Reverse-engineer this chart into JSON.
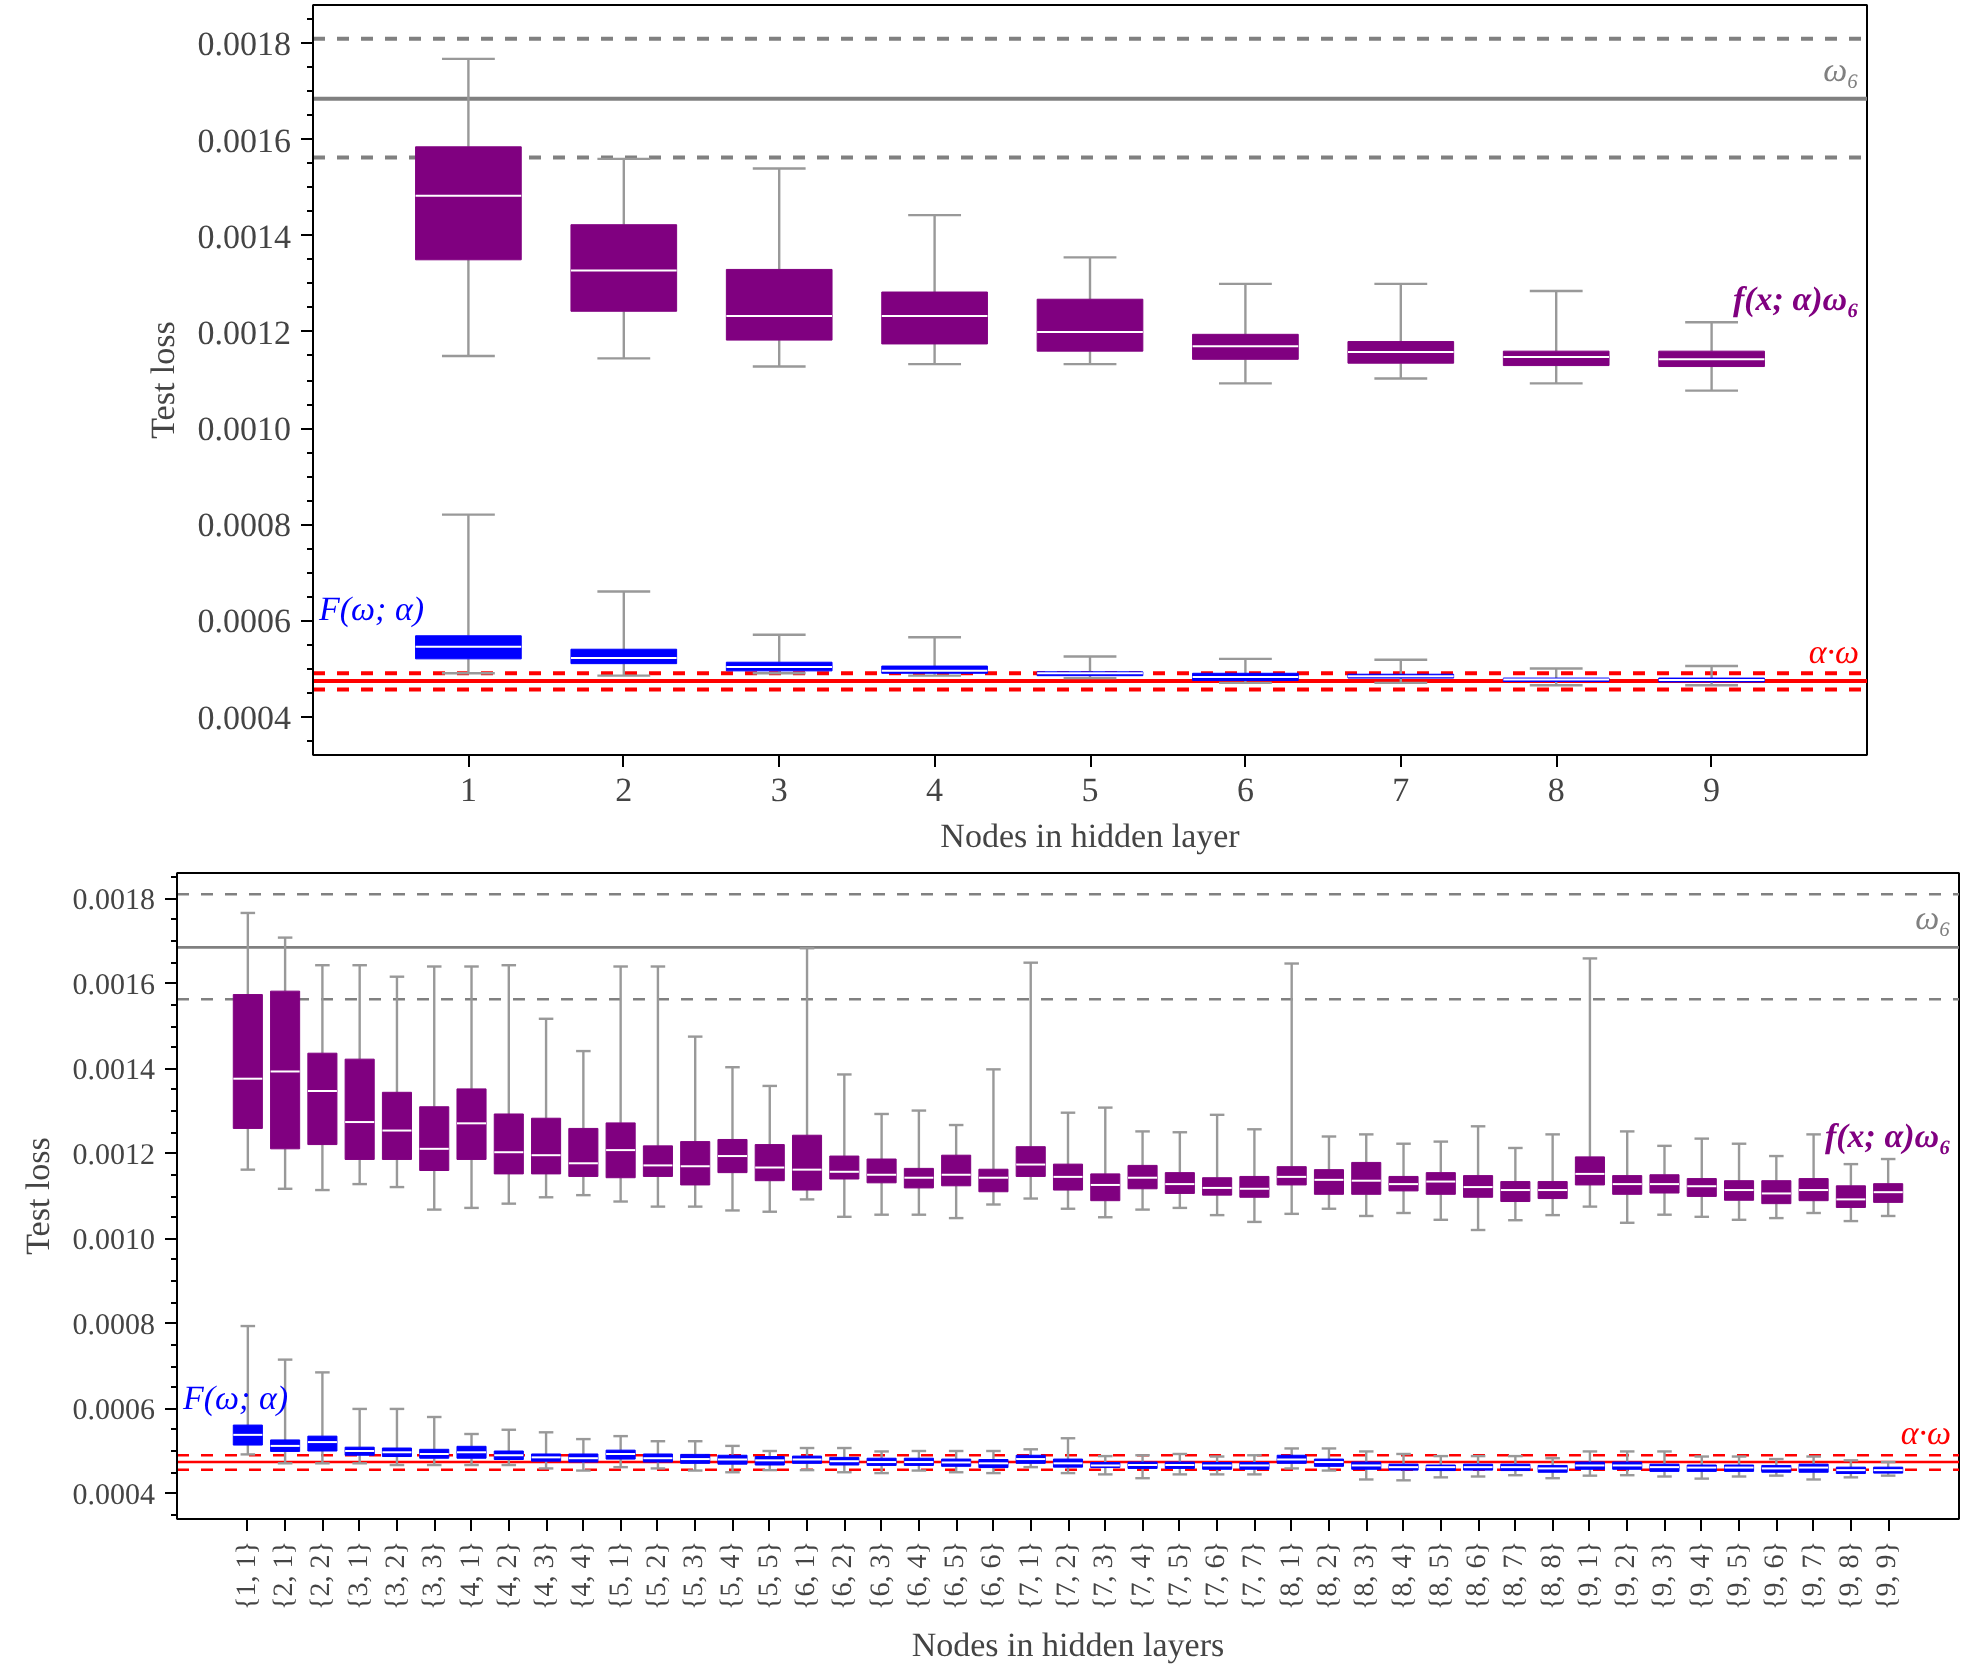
{
  "chart_data": [
    {
      "type": "box",
      "xlabel": "Nodes in hidden layer",
      "ylabel": "Test loss",
      "categories": [
        "1",
        "2",
        "3",
        "4",
        "5",
        "6",
        "7",
        "8",
        "9"
      ],
      "ylim": [
        0.00032,
        0.00188
      ],
      "yticks": [
        0.0004,
        0.0006,
        0.0008,
        {
          "value": 0.001,
          "label": "0.0010"
        },
        0.0012,
        0.0014,
        0.0016,
        0.0018
      ],
      "grid": false,
      "ref_lines": [
        {
          "axis": "y",
          "value": 0.00181,
          "color": "#808080",
          "line_style": "dashed"
        },
        {
          "axis": "y",
          "value": 0.001685,
          "color": "#808080",
          "line_style": "solid",
          "label": "ω₆"
        },
        {
          "axis": "y",
          "value": 0.001563,
          "color": "#808080",
          "line_style": "dashed"
        },
        {
          "axis": "y",
          "value": 0.00049,
          "color": "#ff0000",
          "line_style": "dashed"
        },
        {
          "axis": "y",
          "value": 0.000474,
          "color": "#ff0000",
          "line_style": "solid",
          "label": "α·ω"
        },
        {
          "axis": "y",
          "value": 0.000456,
          "color": "#ff0000",
          "line_style": "dashed"
        }
      ],
      "series": [
        {
          "name": "f(x; α)ω₆",
          "color": "#800080",
          "boxes": [
            {
              "low": 0.00115,
              "q1": 0.00135,
              "median": 0.001483,
              "q3": 0.001585,
              "high": 0.001768
            },
            {
              "low": 0.001145,
              "q1": 0.001243,
              "median": 0.001328,
              "q3": 0.001423,
              "high": 0.00156
            },
            {
              "low": 0.001128,
              "q1": 0.001183,
              "median": 0.001233,
              "q3": 0.00133,
              "high": 0.00154
            },
            {
              "low": 0.001133,
              "q1": 0.001175,
              "median": 0.001233,
              "q3": 0.001283,
              "high": 0.001443
            },
            {
              "low": 0.001133,
              "q1": 0.00116,
              "median": 0.0012,
              "q3": 0.001268,
              "high": 0.001355
            },
            {
              "low": 0.001093,
              "q1": 0.001143,
              "median": 0.00117,
              "q3": 0.001195,
              "high": 0.0013
            },
            {
              "low": 0.001103,
              "q1": 0.001135,
              "median": 0.001158,
              "q3": 0.00118,
              "high": 0.0013
            },
            {
              "low": 0.001093,
              "q1": 0.00113,
              "median": 0.001148,
              "q3": 0.00116,
              "high": 0.001285
            },
            {
              "low": 0.001078,
              "q1": 0.001128,
              "median": 0.001143,
              "q3": 0.00116,
              "high": 0.00122
            }
          ]
        },
        {
          "name": "F(ω; α)",
          "color": "#0000ff",
          "boxes": [
            {
              "low": 0.00049,
              "q1": 0.00052,
              "median": 0.000545,
              "q3": 0.000568,
              "high": 0.00082
            },
            {
              "low": 0.000485,
              "q1": 0.00051,
              "median": 0.000522,
              "q3": 0.00054,
              "high": 0.00066
            },
            {
              "low": 0.00049,
              "q1": 0.000495,
              "median": 0.000503,
              "q3": 0.000513,
              "high": 0.00057
            },
            {
              "low": 0.000485,
              "q1": 0.00049,
              "median": 0.000495,
              "q3": 0.000505,
              "high": 0.000565
            },
            {
              "low": 0.00048,
              "q1": 0.000485,
              "median": 0.00049,
              "q3": 0.000493,
              "high": 0.000525
            },
            {
              "low": 0.00047,
              "q1": 0.000475,
              "median": 0.000482,
              "q3": 0.00049,
              "high": 0.00052
            },
            {
              "low": 0.00047,
              "q1": 0.00048,
              "median": 0.000484,
              "q3": 0.000488,
              "high": 0.000518
            },
            {
              "low": 0.000465,
              "q1": 0.000473,
              "median": 0.000477,
              "q3": 0.00048,
              "high": 0.0005
            },
            {
              "low": 0.000465,
              "q1": 0.000472,
              "median": 0.000476,
              "q3": 0.00048,
              "high": 0.000505
            }
          ]
        }
      ]
    },
    {
      "type": "box",
      "xlabel": "Nodes in hidden layers",
      "ylabel": "Test loss",
      "categories": [
        "{1, 1}",
        "{2, 1}",
        "{2, 2}",
        "{3, 1}",
        "{3, 2}",
        "{3, 3}",
        "{4, 1}",
        "{4, 2}",
        "{4, 3}",
        "{4, 4}",
        "{5, 1}",
        "{5, 2}",
        "{5, 3}",
        "{5, 4}",
        "{5, 5}",
        "{6, 1}",
        "{6, 2}",
        "{6, 3}",
        "{6, 4}",
        "{6, 5}",
        "{6, 6}",
        "{7, 1}",
        "{7, 2}",
        "{7, 3}",
        "{7, 4}",
        "{7, 5}",
        "{7, 6}",
        "{7, 7}",
        "{8, 1}",
        "{8, 2}",
        "{8, 3}",
        "{8, 4}",
        "{8, 5}",
        "{8, 6}",
        "{8, 7}",
        "{8, 8}",
        "{9, 1}",
        "{9, 2}",
        "{9, 3}",
        "{9, 4}",
        "{9, 5}",
        "{9, 6}",
        "{9, 7}",
        "{9, 8}",
        "{9, 9}"
      ],
      "ylim": [
        0.00034,
        0.00186
      ],
      "yticks": [
        0.0004,
        0.0006,
        0.0008,
        {
          "value": 0.001,
          "label": "0.0010"
        },
        0.0012,
        0.0014,
        0.0016,
        0.0018
      ],
      "grid": false,
      "ref_lines": [
        {
          "axis": "y",
          "value": 0.00181,
          "color": "#808080",
          "line_style": "dashed"
        },
        {
          "axis": "y",
          "value": 0.001685,
          "color": "#808080",
          "line_style": "solid",
          "label": "ω₆"
        },
        {
          "axis": "y",
          "value": 0.001563,
          "color": "#808080",
          "line_style": "dashed"
        },
        {
          "axis": "y",
          "value": 0.00049,
          "color": "#ff0000",
          "line_style": "dashed"
        },
        {
          "axis": "y",
          "value": 0.000474,
          "color": "#ff0000",
          "line_style": "solid",
          "label": "α·ω"
        },
        {
          "axis": "y",
          "value": 0.000456,
          "color": "#ff0000",
          "line_style": "dashed"
        }
      ],
      "series": [
        {
          "name": "f(x; α)ω₆",
          "color": "#800080",
          "boxes": [
            {
              "low": 0.001162,
              "q1": 0.001259,
              "median": 0.001376,
              "q3": 0.001574,
              "high": 0.001766
            },
            {
              "low": 0.001117,
              "q1": 0.001211,
              "median": 0.001393,
              "q3": 0.001582,
              "high": 0.001708
            },
            {
              "low": 0.001114,
              "q1": 0.001221,
              "median": 0.001347,
              "q3": 0.001436,
              "high": 0.001643
            },
            {
              "low": 0.001128,
              "q1": 0.001186,
              "median": 0.001274,
              "q3": 0.001422,
              "high": 0.001643
            },
            {
              "low": 0.001121,
              "q1": 0.001186,
              "median": 0.001254,
              "q3": 0.001344,
              "high": 0.001616
            },
            {
              "low": 0.001068,
              "q1": 0.00116,
              "median": 0.001211,
              "q3": 0.00131,
              "high": 0.00164
            },
            {
              "low": 0.001072,
              "q1": 0.001186,
              "median": 0.001271,
              "q3": 0.001352,
              "high": 0.00164
            },
            {
              "low": 0.001082,
              "q1": 0.001152,
              "median": 0.001203,
              "q3": 0.001293,
              "high": 0.001643
            },
            {
              "low": 0.001097,
              "q1": 0.001152,
              "median": 0.001196,
              "q3": 0.001283,
              "high": 0.001517
            },
            {
              "low": 0.001102,
              "q1": 0.001146,
              "median": 0.001177,
              "q3": 0.001259,
              "high": 0.001441
            },
            {
              "low": 0.001087,
              "q1": 0.001143,
              "median": 0.001208,
              "q3": 0.001272,
              "high": 0.00164
            },
            {
              "low": 0.001075,
              "q1": 0.001146,
              "median": 0.001172,
              "q3": 0.001218,
              "high": 0.00164
            },
            {
              "low": 0.001075,
              "q1": 0.001126,
              "median": 0.00117,
              "q3": 0.001228,
              "high": 0.001475
            },
            {
              "low": 0.001066,
              "q1": 0.001155,
              "median": 0.001194,
              "q3": 0.001233,
              "high": 0.001403
            },
            {
              "low": 0.001063,
              "q1": 0.001136,
              "median": 0.001167,
              "q3": 0.001221,
              "high": 0.001359
            },
            {
              "low": 0.001092,
              "q1": 0.001114,
              "median": 0.001162,
              "q3": 0.001243,
              "high": 0.001683
            },
            {
              "low": 0.001051,
              "q1": 0.00114,
              "median": 0.001157,
              "q3": 0.001194,
              "high": 0.001386
            },
            {
              "low": 0.001056,
              "q1": 0.001131,
              "median": 0.00115,
              "q3": 0.001187,
              "high": 0.001293
            },
            {
              "low": 0.001056,
              "q1": 0.001119,
              "median": 0.001143,
              "q3": 0.001165,
              "high": 0.001301
            },
            {
              "low": 0.001048,
              "q1": 0.001124,
              "median": 0.00115,
              "q3": 0.001196,
              "high": 0.001267
            },
            {
              "low": 0.00108,
              "q1": 0.00111,
              "median": 0.001143,
              "q3": 0.001163,
              "high": 0.001398
            },
            {
              "low": 0.001094,
              "q1": 0.001146,
              "median": 0.001174,
              "q3": 0.001216,
              "high": 0.001649
            },
            {
              "low": 0.00107,
              "q1": 0.001114,
              "median": 0.001145,
              "q3": 0.001175,
              "high": 0.001296
            },
            {
              "low": 0.00105,
              "q1": 0.001089,
              "median": 0.001126,
              "q3": 0.001152,
              "high": 0.001308
            },
            {
              "low": 0.001068,
              "q1": 0.001117,
              "median": 0.001143,
              "q3": 0.001172,
              "high": 0.001252
            },
            {
              "low": 0.001072,
              "q1": 0.001106,
              "median": 0.001128,
              "q3": 0.001155,
              "high": 0.00125
            },
            {
              "low": 0.001055,
              "q1": 0.001102,
              "median": 0.001119,
              "q3": 0.001143,
              "high": 0.001291
            },
            {
              "low": 0.001039,
              "q1": 0.001097,
              "median": 0.001117,
              "q3": 0.001146,
              "high": 0.001257
            },
            {
              "low": 0.001058,
              "q1": 0.001126,
              "median": 0.001145,
              "q3": 0.001169,
              "high": 0.001647
            },
            {
              "low": 0.00107,
              "q1": 0.001104,
              "median": 0.001138,
              "q3": 0.001162,
              "high": 0.00124
            },
            {
              "low": 0.001053,
              "q1": 0.001104,
              "median": 0.001136,
              "q3": 0.001179,
              "high": 0.001245
            },
            {
              "low": 0.00106,
              "q1": 0.001112,
              "median": 0.001128,
              "q3": 0.001146,
              "high": 0.001223
            },
            {
              "low": 0.001044,
              "q1": 0.001104,
              "median": 0.001134,
              "q3": 0.001155,
              "high": 0.001228
            },
            {
              "low": 0.00102,
              "q1": 0.001097,
              "median": 0.001121,
              "q3": 0.001148,
              "high": 0.001264
            },
            {
              "low": 0.001043,
              "q1": 0.001087,
              "median": 0.001114,
              "q3": 0.001134,
              "high": 0.001213
            },
            {
              "low": 0.001055,
              "q1": 0.001094,
              "median": 0.001114,
              "q3": 0.001134,
              "high": 0.001245
            },
            {
              "low": 0.001075,
              "q1": 0.001126,
              "median": 0.001152,
              "q3": 0.001192,
              "high": 0.001659
            },
            {
              "low": 0.001037,
              "q1": 0.001104,
              "median": 0.001128,
              "q3": 0.001148,
              "high": 0.001252
            },
            {
              "low": 0.001056,
              "q1": 0.001107,
              "median": 0.001128,
              "q3": 0.00115,
              "high": 0.001218
            },
            {
              "low": 0.001051,
              "q1": 0.001099,
              "median": 0.001123,
              "q3": 0.001141,
              "high": 0.001235
            },
            {
              "low": 0.001044,
              "q1": 0.00109,
              "median": 0.001114,
              "q3": 0.001136,
              "high": 0.001223
            },
            {
              "low": 0.001048,
              "q1": 0.001082,
              "median": 0.001106,
              "q3": 0.001136,
              "high": 0.001194
            },
            {
              "low": 0.00106,
              "q1": 0.001089,
              "median": 0.001114,
              "q3": 0.001141,
              "high": 0.001245
            },
            {
              "low": 0.001041,
              "q1": 0.001073,
              "median": 0.001092,
              "q3": 0.001124,
              "high": 0.001175
            },
            {
              "low": 0.001053,
              "q1": 0.001085,
              "median": 0.001109,
              "q3": 0.001129,
              "high": 0.001187
            }
          ]
        },
        {
          "name": "F(ω; α)",
          "color": "#0000ff",
          "boxes": [
            {
              "low": 0.000492,
              "q1": 0.000514,
              "median": 0.000538,
              "q3": 0.000561,
              "high": 0.000794
            },
            {
              "low": 0.000471,
              "q1": 0.000499,
              "median": 0.000512,
              "q3": 0.000526,
              "high": 0.000715
            },
            {
              "low": 0.000471,
              "q1": 0.0005,
              "median": 0.000521,
              "q3": 0.000535,
              "high": 0.000685
            },
            {
              "low": 0.000471,
              "q1": 0.00049,
              "median": 0.0005,
              "q3": 0.000509,
              "high": 0.000599
            },
            {
              "low": 0.000467,
              "q1": 0.000487,
              "median": 0.000497,
              "q3": 0.000507,
              "high": 0.000599
            },
            {
              "low": 0.000467,
              "q1": 0.000483,
              "median": 0.000493,
              "q3": 0.000504,
              "high": 0.00058
            },
            {
              "low": 0.000467,
              "q1": 0.000483,
              "median": 0.000497,
              "q3": 0.000511,
              "high": 0.00054
            },
            {
              "low": 0.000467,
              "q1": 0.00048,
              "median": 0.00049,
              "q3": 0.0005,
              "high": 0.00055
            },
            {
              "low": 0.000459,
              "q1": 0.000476,
              "median": 0.000485,
              "q3": 0.000493,
              "high": 0.000544
            },
            {
              "low": 0.000454,
              "q1": 0.000474,
              "median": 0.000483,
              "q3": 0.000493,
              "high": 0.000528
            },
            {
              "low": 0.000462,
              "q1": 0.000481,
              "median": 0.000493,
              "q3": 0.000502,
              "high": 0.000535
            },
            {
              "low": 0.000459,
              "q1": 0.000474,
              "median": 0.000483,
              "q3": 0.000493,
              "high": 0.000523
            },
            {
              "low": 0.000454,
              "q1": 0.000471,
              "median": 0.000481,
              "q3": 0.000492,
              "high": 0.000523
            },
            {
              "low": 0.00045,
              "q1": 0.000469,
              "median": 0.00048,
              "q3": 0.00049,
              "high": 0.000512
            },
            {
              "low": 0.000455,
              "q1": 0.000467,
              "median": 0.000478,
              "q3": 0.000487,
              "high": 0.0005
            },
            {
              "low": 0.000455,
              "q1": 0.000471,
              "median": 0.00048,
              "q3": 0.000488,
              "high": 0.000507
            },
            {
              "low": 0.00045,
              "q1": 0.000467,
              "median": 0.000476,
              "q3": 0.000485,
              "high": 0.000507
            },
            {
              "low": 0.000448,
              "q1": 0.000466,
              "median": 0.000474,
              "q3": 0.000483,
              "high": 0.000499
            },
            {
              "low": 0.000454,
              "q1": 0.000466,
              "median": 0.000474,
              "q3": 0.000483,
              "high": 0.0005
            },
            {
              "low": 0.00045,
              "q1": 0.000464,
              "median": 0.000473,
              "q3": 0.000481,
              "high": 0.0005
            },
            {
              "low": 0.000448,
              "q1": 0.000461,
              "median": 0.000471,
              "q3": 0.00048,
              "high": 0.0005
            },
            {
              "low": 0.000462,
              "q1": 0.000471,
              "median": 0.000481,
              "q3": 0.00049,
              "high": 0.000504
            },
            {
              "low": 0.000448,
              "q1": 0.000462,
              "median": 0.000471,
              "q3": 0.000481,
              "high": 0.00053
            },
            {
              "low": 0.000445,
              "q1": 0.000461,
              "median": 0.000466,
              "q3": 0.000473,
              "high": 0.000488
            },
            {
              "low": 0.000436,
              "q1": 0.000459,
              "median": 0.000467,
              "q3": 0.000474,
              "high": 0.00049
            },
            {
              "low": 0.000445,
              "q1": 0.000459,
              "median": 0.000467,
              "q3": 0.000474,
              "high": 0.000493
            },
            {
              "low": 0.000445,
              "q1": 0.000457,
              "median": 0.000466,
              "q3": 0.000473,
              "high": 0.000487
            },
            {
              "low": 0.000445,
              "q1": 0.000457,
              "median": 0.000466,
              "q3": 0.000473,
              "high": 0.00049
            },
            {
              "low": 0.000459,
              "q1": 0.000471,
              "median": 0.00048,
              "q3": 0.00049,
              "high": 0.000506
            },
            {
              "low": 0.000454,
              "q1": 0.000464,
              "median": 0.000474,
              "q3": 0.000481,
              "high": 0.000506
            },
            {
              "low": 0.000433,
              "q1": 0.000457,
              "median": 0.000466,
              "q3": 0.000474,
              "high": 0.000499
            },
            {
              "low": 0.000431,
              "q1": 0.000455,
              "median": 0.000462,
              "q3": 0.000469,
              "high": 0.000493
            },
            {
              "low": 0.000438,
              "q1": 0.000454,
              "median": 0.000462,
              "q3": 0.000467,
              "high": 0.000488
            },
            {
              "low": 0.00044,
              "q1": 0.000455,
              "median": 0.000462,
              "q3": 0.000469,
              "high": 0.000488
            },
            {
              "low": 0.000443,
              "q1": 0.000454,
              "median": 0.000462,
              "q3": 0.000469,
              "high": 0.000488
            },
            {
              "low": 0.000436,
              "q1": 0.00045,
              "median": 0.000459,
              "q3": 0.000466,
              "high": 0.000483
            },
            {
              "low": 0.000442,
              "q1": 0.000457,
              "median": 0.000466,
              "q3": 0.000474,
              "high": 0.000499
            },
            {
              "low": 0.000443,
              "q1": 0.000457,
              "median": 0.000466,
              "q3": 0.000474,
              "high": 0.000499
            },
            {
              "low": 0.00044,
              "q1": 0.000452,
              "median": 0.000462,
              "q3": 0.000469,
              "high": 0.000499
            },
            {
              "low": 0.000435,
              "q1": 0.000452,
              "median": 0.000461,
              "q3": 0.000467,
              "high": 0.000487
            },
            {
              "low": 0.00044,
              "q1": 0.000452,
              "median": 0.000461,
              "q3": 0.000467,
              "high": 0.000487
            },
            {
              "low": 0.000442,
              "q1": 0.00045,
              "median": 0.000459,
              "q3": 0.000466,
              "high": 0.000481
            },
            {
              "low": 0.000433,
              "q1": 0.00045,
              "median": 0.000461,
              "q3": 0.000469,
              "high": 0.000487
            },
            {
              "low": 0.000438,
              "q1": 0.000447,
              "median": 0.000455,
              "q3": 0.000462,
              "high": 0.000478
            },
            {
              "low": 0.000442,
              "q1": 0.000448,
              "median": 0.000455,
              "q3": 0.000462,
              "high": 0.000474
            }
          ]
        }
      ]
    }
  ]
}
